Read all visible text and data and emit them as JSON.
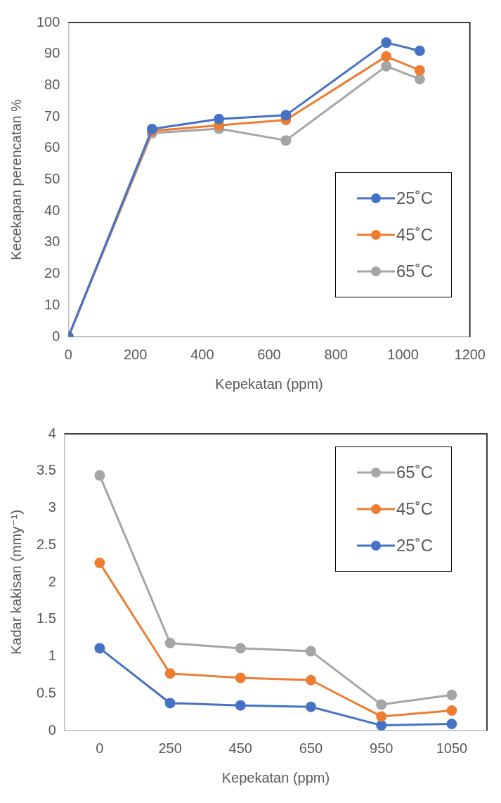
{
  "chart_data": [
    {
      "type": "line",
      "xlabel": "Kepekatan (ppm)",
      "ylabel": "Kecekapan perencatan %",
      "x": [
        0,
        250,
        450,
        650,
        950,
        1050
      ],
      "xlim": [
        0,
        1200
      ],
      "xticks": [
        0,
        200,
        400,
        600,
        800,
        1000,
        1200
      ],
      "ylim": [
        0,
        100
      ],
      "yticks": [
        0,
        10,
        20,
        30,
        40,
        50,
        60,
        70,
        80,
        90,
        100
      ],
      "grid": false,
      "legend": "bottom right",
      "marker": "circle",
      "line_style": "solid",
      "series": [
        {
          "name": "25˚C",
          "color": "#4472c4",
          "values": [
            0,
            66.1,
            69.3,
            70.5,
            93.6,
            91
          ]
        },
        {
          "name": "45˚C",
          "color": "#ed7d31",
          "values": [
            0,
            65.5,
            67.3,
            69,
            89.2,
            84.8
          ]
        },
        {
          "name": "65˚C",
          "color": "#a5a5a5",
          "values": [
            0,
            64.8,
            66.2,
            62.5,
            86.1,
            82
          ]
        }
      ]
    },
    {
      "type": "line",
      "xlabel": "Kepekatan (ppm)",
      "ylabel": "Kadar kakisan (mmy⁻¹)",
      "categories": [
        "0",
        "250",
        "450",
        "650",
        "950",
        "1050"
      ],
      "ylim": [
        0,
        4
      ],
      "yticks": [
        0,
        0.5,
        1,
        1.5,
        2,
        2.5,
        3,
        3.5,
        4
      ],
      "grid": false,
      "legend": "top right",
      "marker": "circle",
      "line_style": "solid",
      "series": [
        {
          "name": "65˚C",
          "color": "#a5a5a5",
          "values": [
            3.44,
            1.18,
            1.11,
            1.07,
            0.35,
            0.48
          ]
        },
        {
          "name": "45˚C",
          "color": "#ed7d31",
          "values": [
            2.26,
            0.77,
            0.71,
            0.68,
            0.19,
            0.27
          ]
        },
        {
          "name": "25˚C",
          "color": "#4472c4",
          "values": [
            1.11,
            0.37,
            0.34,
            0.32,
            0.07,
            0.09
          ]
        }
      ]
    }
  ]
}
